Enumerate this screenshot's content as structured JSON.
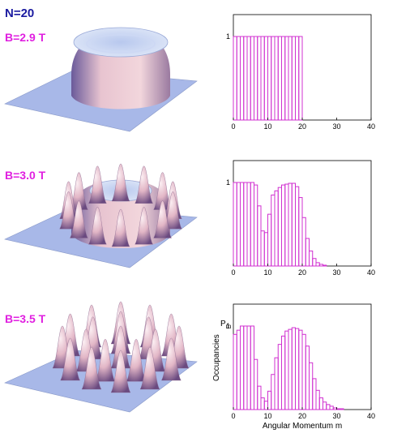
{
  "header": {
    "particle_count": "N=20"
  },
  "colors": {
    "bar": "#d030d0",
    "plate": "#a8b8e8",
    "surface": "#e8c0c8",
    "shadow": "#7a5a8a",
    "axis": "#000000"
  },
  "chart_data": [
    {
      "type": "bar",
      "field_label": "B=2.9 T",
      "xlim": [
        0,
        40
      ],
      "ylim": [
        0,
        1
      ],
      "x_ticks": [
        "0",
        "10",
        "20",
        "30",
        "40"
      ],
      "y_tick": "1",
      "xlabel": "",
      "ylabel": "",
      "ylabel_sub": "",
      "m": [
        0,
        1,
        2,
        3,
        4,
        5,
        6,
        7,
        8,
        9,
        10,
        11,
        12,
        13,
        14,
        15,
        16,
        17,
        18,
        19
      ],
      "values": [
        1,
        1,
        1,
        1,
        1,
        1,
        1,
        1,
        1,
        1,
        1,
        1,
        1,
        1,
        1,
        1,
        1,
        1,
        1,
        1
      ]
    },
    {
      "type": "bar",
      "field_label": "B=3.0 T",
      "xlim": [
        0,
        40
      ],
      "ylim": [
        0,
        1
      ],
      "x_ticks": [
        "0",
        "10",
        "20",
        "30",
        "40"
      ],
      "y_tick": "1",
      "xlabel": "",
      "ylabel": "",
      "ylabel_sub": "",
      "m": [
        0,
        1,
        2,
        3,
        4,
        5,
        6,
        7,
        8,
        9,
        10,
        11,
        12,
        13,
        14,
        15,
        16,
        17,
        18,
        19,
        20,
        21,
        22,
        23,
        24,
        25,
        26
      ],
      "values": [
        1,
        1,
        1,
        1,
        1,
        1,
        0.97,
        0.72,
        0.42,
        0.4,
        0.62,
        0.85,
        0.9,
        0.94,
        0.97,
        0.98,
        0.99,
        0.99,
        0.95,
        0.82,
        0.58,
        0.33,
        0.18,
        0.09,
        0.04,
        0.02,
        0.01
      ]
    },
    {
      "type": "bar",
      "field_label": "B=3.5 T",
      "xlim": [
        0,
        40
      ],
      "ylim": [
        0,
        1
      ],
      "x_ticks": [
        "0",
        "10",
        "20",
        "30",
        "40"
      ],
      "y_tick": "1",
      "xlabel": "Angular Momentum m",
      "ylabel": "Occupancies",
      "ylabel_sub": "P",
      "ylabel_subscript": "m",
      "m": [
        0,
        1,
        2,
        3,
        4,
        5,
        6,
        7,
        8,
        9,
        10,
        11,
        12,
        13,
        14,
        15,
        16,
        17,
        18,
        19,
        20,
        21,
        22,
        23,
        24,
        25,
        26,
        27,
        28,
        29,
        30,
        31
      ],
      "values": [
        0.9,
        0.95,
        1,
        1,
        1,
        1,
        0.6,
        0.28,
        0.14,
        0.1,
        0.22,
        0.42,
        0.62,
        0.78,
        0.88,
        0.94,
        0.96,
        0.98,
        0.97,
        0.95,
        0.9,
        0.76,
        0.56,
        0.37,
        0.23,
        0.14,
        0.09,
        0.06,
        0.04,
        0.02,
        0.01,
        0.01
      ]
    }
  ]
}
